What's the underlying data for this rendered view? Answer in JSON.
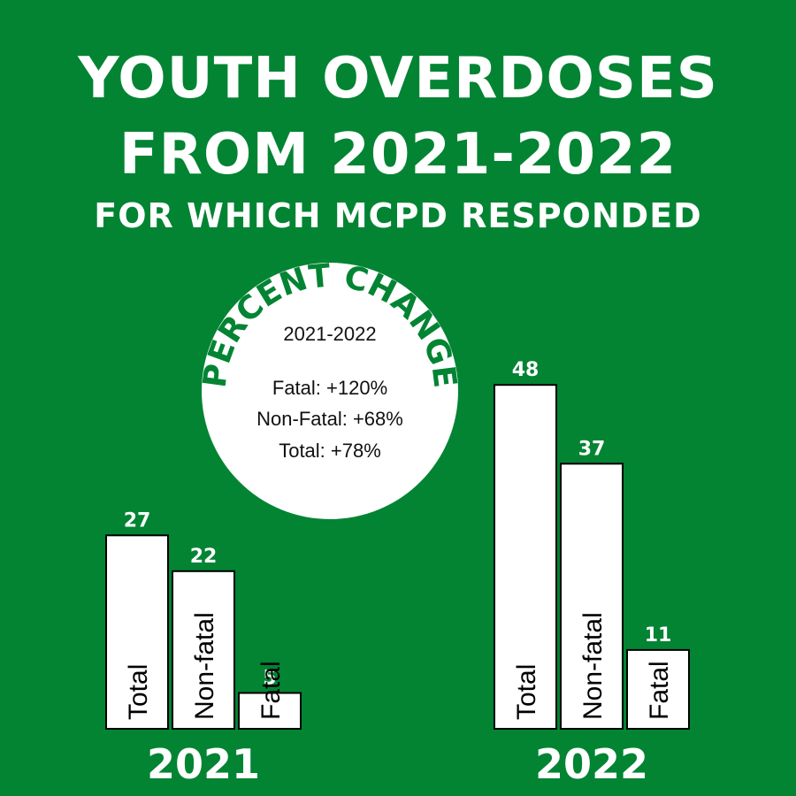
{
  "title": {
    "line1": "YOUTH OVERDOSES",
    "line2": "FROM 2021-2022",
    "line3": "FOR WHICH MCPD RESPONDED"
  },
  "badge": {
    "heading": "PERCENT CHANGE",
    "period": "2021-2022",
    "lines": [
      "Fatal: +120%",
      "Non-Fatal: +68%",
      "Total: +78%"
    ]
  },
  "colors": {
    "background": "#028433",
    "bar_fill": "#ffffff",
    "bar_outline": "#000000",
    "text": "#ffffff"
  },
  "chart_data": {
    "type": "bar",
    "groups": [
      {
        "year": "2021",
        "bars": [
          {
            "label": "Total",
            "value": 27
          },
          {
            "label": "Non-fatal",
            "value": 22
          },
          {
            "label": "Fatal",
            "value": 5
          }
        ]
      },
      {
        "year": "2022",
        "bars": [
          {
            "label": "Total",
            "value": 48
          },
          {
            "label": "Non-fatal",
            "value": 37
          },
          {
            "label": "Fatal",
            "value": 11
          }
        ]
      }
    ]
  }
}
